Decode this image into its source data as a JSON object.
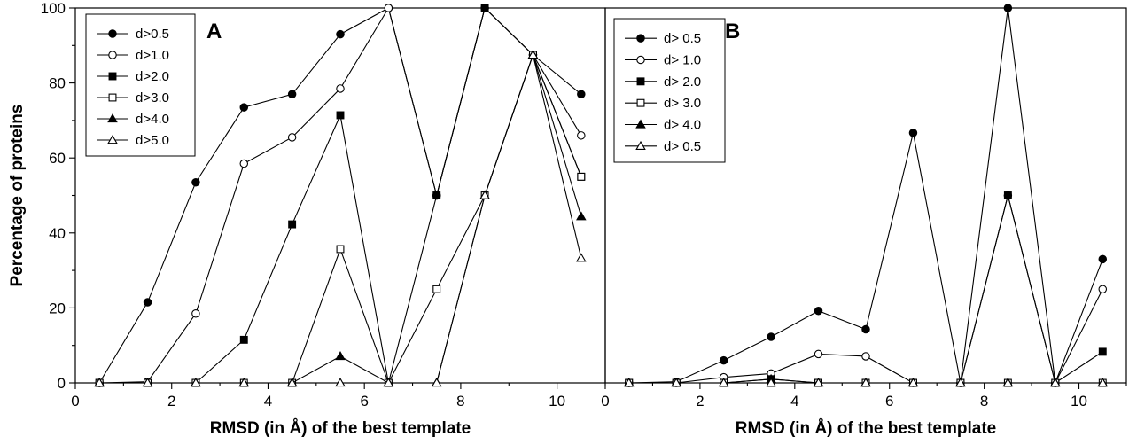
{
  "chart_data": [
    {
      "type": "line",
      "panel_label": "A",
      "xlabel": "RMSD (in Å) of the best template",
      "ylabel": "Percentage of proteins",
      "xlim": [
        0,
        11
      ],
      "ylim": [
        0,
        100
      ],
      "xticks": [
        0,
        2,
        4,
        6,
        8,
        10
      ],
      "yticks": [
        0,
        20,
        40,
        60,
        80,
        100
      ],
      "legend_position": "top-left",
      "x": [
        0.5,
        1.5,
        2.5,
        3.5,
        4.5,
        5.5,
        6.5,
        7.5,
        8.5,
        9.5,
        10.5
      ],
      "series": [
        {
          "name": "d>0.5",
          "marker": "filled-circle",
          "values": [
            0,
            21.5,
            53.5,
            73.5,
            77,
            93,
            100,
            50,
            100,
            87.5,
            77
          ]
        },
        {
          "name": "d>1.0",
          "marker": "open-circle",
          "values": [
            0,
            0.3,
            18.5,
            58.5,
            65.5,
            78.5,
            100,
            50,
            100,
            87.5,
            66
          ]
        },
        {
          "name": "d>2.0",
          "marker": "filled-square",
          "values": [
            0,
            0,
            0,
            11.5,
            42.3,
            71.4,
            0,
            50,
            100,
            87.5,
            55
          ]
        },
        {
          "name": "d>3.0",
          "marker": "open-square",
          "values": [
            0,
            0,
            0,
            0,
            0,
            35.7,
            0,
            25,
            50,
            87.5,
            55
          ]
        },
        {
          "name": "d>4.0",
          "marker": "filled-triangle",
          "values": [
            0,
            0,
            0,
            0,
            0,
            7.1,
            0,
            0,
            50,
            87.5,
            44.4
          ]
        },
        {
          "name": "d>5.0",
          "marker": "open-triangle",
          "values": [
            0,
            0,
            0,
            0,
            0,
            0,
            0,
            0,
            50,
            87.5,
            33.3
          ]
        }
      ]
    },
    {
      "type": "line",
      "panel_label": "B",
      "xlabel": "RMSD (in Å) of the best template",
      "ylabel": "",
      "xlim": [
        0,
        11
      ],
      "ylim": [
        0,
        100
      ],
      "xticks": [
        0,
        2,
        4,
        6,
        8,
        10
      ],
      "yticks": [],
      "legend_position": "top-left",
      "x": [
        0.5,
        1.5,
        2.5,
        3.5,
        4.5,
        5.5,
        6.5,
        7.5,
        8.5,
        9.5,
        10.5
      ],
      "series": [
        {
          "name": "d> 0.5",
          "marker": "filled-circle",
          "values": [
            0,
            0.3,
            6,
            12.3,
            19.2,
            14.3,
            66.7,
            0,
            100,
            0,
            33
          ]
        },
        {
          "name": "d> 1.0",
          "marker": "open-circle",
          "values": [
            0,
            0,
            1.5,
            2.5,
            7.7,
            7.1,
            0,
            0,
            50,
            0,
            25
          ]
        },
        {
          "name": "d> 2.0",
          "marker": "filled-square",
          "values": [
            0,
            0,
            0,
            1,
            0,
            0,
            0,
            0,
            50,
            0,
            8.3
          ]
        },
        {
          "name": "d> 3.0",
          "marker": "open-square",
          "values": [
            0,
            0,
            0,
            0,
            0,
            0,
            0,
            0,
            0,
            0,
            0
          ]
        },
        {
          "name": "d> 4.0",
          "marker": "filled-triangle",
          "values": [
            0,
            0,
            0,
            1,
            0,
            0,
            0,
            0,
            0,
            0,
            0
          ]
        },
        {
          "name": "d> 0.5",
          "marker": "open-triangle",
          "values": [
            0,
            0,
            0,
            0,
            0,
            0,
            0,
            0,
            0,
            0,
            0
          ]
        }
      ]
    }
  ]
}
